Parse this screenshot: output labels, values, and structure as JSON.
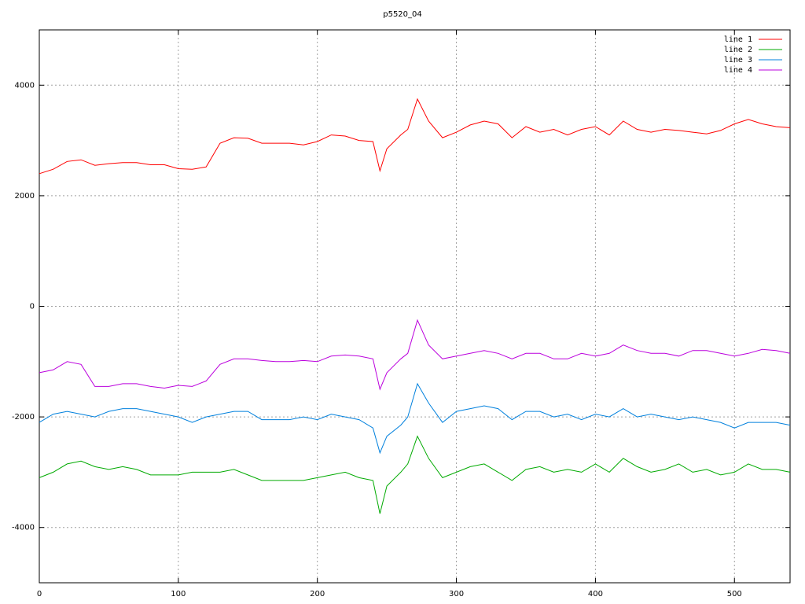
{
  "chart_data": {
    "type": "line",
    "title": "p5520_04",
    "x": [
      0,
      10,
      20,
      30,
      40,
      50,
      60,
      70,
      80,
      90,
      100,
      110,
      120,
      130,
      140,
      150,
      160,
      170,
      180,
      190,
      200,
      210,
      220,
      230,
      240,
      245,
      250,
      260,
      265,
      272,
      280,
      290,
      300,
      310,
      320,
      330,
      340,
      350,
      360,
      370,
      380,
      390,
      400,
      410,
      420,
      430,
      440,
      450,
      460,
      470,
      480,
      490,
      500,
      510,
      520,
      530,
      540
    ],
    "series": [
      {
        "name": "line 1",
        "color": "#ff0000",
        "values": [
          2400,
          2480,
          2620,
          2650,
          2550,
          2580,
          2600,
          2600,
          2560,
          2560,
          2490,
          2480,
          2520,
          2950,
          3050,
          3040,
          2950,
          2950,
          2950,
          2920,
          2980,
          3100,
          3080,
          3000,
          2980,
          2450,
          2850,
          3100,
          3200,
          3750,
          3350,
          3050,
          3150,
          3280,
          3350,
          3300,
          3050,
          3250,
          3150,
          3200,
          3100,
          3200,
          3250,
          3100,
          3350,
          3200,
          3150,
          3200,
          3180,
          3150,
          3120,
          3180,
          3300,
          3380,
          3300,
          3250,
          3230
        ]
      },
      {
        "name": "line 2",
        "color": "#00aa00",
        "values": [
          -3100,
          -3000,
          -2850,
          -2800,
          -2900,
          -2950,
          -2900,
          -2950,
          -3050,
          -3050,
          -3050,
          -3000,
          -3000,
          -3000,
          -2950,
          -3050,
          -3150,
          -3150,
          -3150,
          -3150,
          -3100,
          -3050,
          -3000,
          -3100,
          -3150,
          -3750,
          -3250,
          -3000,
          -2850,
          -2350,
          -2750,
          -3100,
          -3000,
          -2900,
          -2850,
          -3000,
          -3150,
          -2950,
          -2900,
          -3000,
          -2950,
          -3000,
          -2850,
          -3000,
          -2750,
          -2900,
          -3000,
          -2950,
          -2850,
          -3000,
          -2950,
          -3050,
          -3000,
          -2850,
          -2950,
          -2950,
          -3000
        ]
      },
      {
        "name": "line 3",
        "color": "#0080dd",
        "values": [
          -2100,
          -1950,
          -1900,
          -1950,
          -2000,
          -1900,
          -1850,
          -1850,
          -1900,
          -1950,
          -2000,
          -2100,
          -2000,
          -1950,
          -1900,
          -1900,
          -2050,
          -2050,
          -2050,
          -2000,
          -2050,
          -1950,
          -2000,
          -2050,
          -2200,
          -2650,
          -2350,
          -2150,
          -2000,
          -1400,
          -1750,
          -2100,
          -1900,
          -1850,
          -1800,
          -1850,
          -2050,
          -1900,
          -1900,
          -2000,
          -1950,
          -2050,
          -1950,
          -2000,
          -1850,
          -2000,
          -1950,
          -2000,
          -2050,
          -2000,
          -2050,
          -2100,
          -2200,
          -2100,
          -2100,
          -2100,
          -2150
        ]
      },
      {
        "name": "line 4",
        "color": "#bb00dd",
        "values": [
          -1200,
          -1150,
          -1000,
          -1050,
          -1450,
          -1450,
          -1400,
          -1400,
          -1450,
          -1480,
          -1430,
          -1450,
          -1350,
          -1050,
          -950,
          -950,
          -980,
          -1000,
          -1000,
          -980,
          -1000,
          -900,
          -880,
          -900,
          -950,
          -1500,
          -1200,
          -950,
          -850,
          -250,
          -700,
          -950,
          -900,
          -850,
          -800,
          -850,
          -950,
          -850,
          -850,
          -950,
          -950,
          -850,
          -900,
          -850,
          -700,
          -800,
          -850,
          -850,
          -900,
          -800,
          -800,
          -850,
          -900,
          -850,
          -780,
          -800,
          -850
        ]
      }
    ],
    "xlim": [
      0,
      540
    ],
    "xticks": [
      0,
      100,
      200,
      300,
      400,
      500
    ],
    "ylim": [
      -5000,
      5000
    ],
    "yticks": [
      -4000,
      -2000,
      0,
      2000,
      4000
    ],
    "grid": true,
    "legend": "top-right"
  }
}
